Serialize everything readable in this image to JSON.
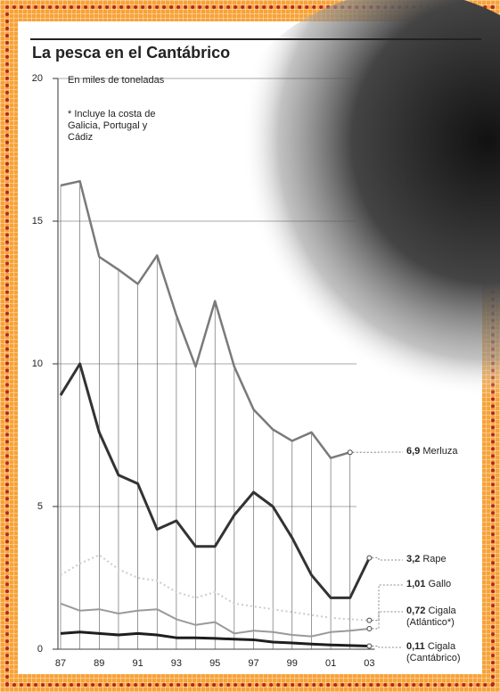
{
  "chart_data": {
    "type": "line",
    "title": "La pesca en el Cantábrico",
    "annotations": [
      "En miles de toneladas",
      "* Incluye la costa de Galicia, Portugal y Cádiz"
    ],
    "categories": [
      "87",
      null,
      "89",
      null,
      "91",
      null,
      "93",
      null,
      "95",
      null,
      "97",
      null,
      "99",
      null,
      "01",
      null,
      "03"
    ],
    "ylim": [
      0,
      20
    ],
    "yticks": [
      0,
      5,
      10,
      15,
      20
    ],
    "grid": true,
    "series": [
      {
        "name": "Merluza",
        "color": "#7a7a7a",
        "values": [
          16.25,
          16.4,
          13.75,
          13.3,
          12.8,
          13.8,
          11.7,
          9.9,
          12.2,
          9.9,
          8.4,
          7.7,
          7.3,
          7.6,
          6.7,
          6.9,
          null
        ],
        "value_labels": [
          null,
          null,
          null,
          null,
          null,
          null,
          null,
          null,
          null,
          null,
          null,
          null,
          null,
          null,
          null,
          "6,9",
          null
        ]
      },
      {
        "name": "Rape",
        "color": "#333333",
        "values": [
          8.9,
          10,
          7.6,
          6.1,
          5.8,
          4.2,
          4.5,
          3.6,
          3.6,
          4.7,
          5.5,
          5.0,
          3.9,
          2.6,
          1.8,
          1.8,
          3.2
        ],
        "value_labels": [
          null,
          null,
          null,
          null,
          null,
          null,
          null,
          null,
          null,
          null,
          null,
          null,
          null,
          null,
          null,
          null,
          "3,2"
        ]
      },
      {
        "name": "Gallo",
        "color": "#cccccc",
        "values": [
          2.6,
          3.0,
          3.3,
          2.8,
          2.5,
          2.4,
          2.0,
          1.8,
          2.0,
          1.6,
          1.5,
          1.4,
          1.3,
          1.2,
          1.1,
          1.05,
          1.01
        ],
        "value_labels": [
          null,
          null,
          null,
          null,
          null,
          null,
          null,
          null,
          null,
          null,
          null,
          null,
          null,
          null,
          null,
          null,
          "1,01"
        ]
      },
      {
        "name": "Cigala (Atlántico*)",
        "color": "#9a9a9a",
        "values": [
          1.6,
          1.35,
          1.4,
          1.25,
          1.35,
          1.4,
          1.05,
          0.85,
          0.95,
          0.55,
          0.65,
          0.6,
          0.5,
          0.45,
          0.6,
          0.65,
          0.72
        ],
        "value_labels": [
          null,
          null,
          null,
          null,
          null,
          null,
          null,
          null,
          null,
          null,
          null,
          null,
          null,
          null,
          null,
          null,
          "0,72"
        ]
      },
      {
        "name": "Cigala (Cantábrico)",
        "color": "#1e1e1e",
        "values": [
          0.55,
          0.6,
          0.55,
          0.5,
          0.55,
          0.5,
          0.4,
          0.4,
          0.38,
          0.35,
          0.33,
          0.25,
          0.22,
          0.18,
          0.15,
          0.13,
          0.11
        ],
        "value_labels": [
          null,
          null,
          null,
          null,
          null,
          null,
          null,
          null,
          null,
          null,
          null,
          null,
          null,
          null,
          null,
          null,
          "0,11"
        ]
      }
    ]
  }
}
